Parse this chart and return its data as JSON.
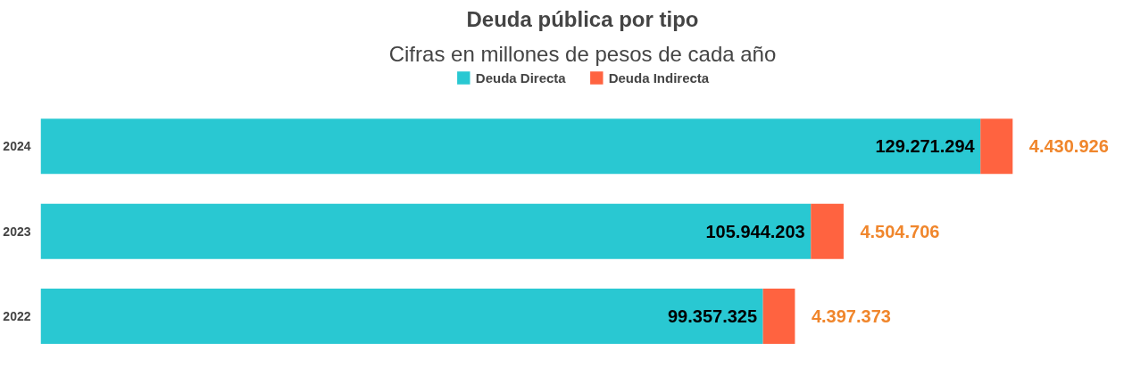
{
  "chart_data": {
    "type": "bar",
    "orientation": "horizontal",
    "stacked": true,
    "title": "Deuda pública por tipo",
    "subtitle": "Cifras en millones de pesos de cada año",
    "categories": [
      "2024",
      "2023",
      "2022"
    ],
    "series": [
      {
        "name": "Deuda Directa",
        "color": "#29c8d2",
        "values": [
          129271294,
          105944203,
          99357325
        ],
        "value_labels": [
          "129.271.294",
          "105.944.203",
          "99.357.325"
        ]
      },
      {
        "name": "Deuda Indirecta",
        "color": "#ff6340",
        "values": [
          4430926,
          4504706,
          4397373
        ],
        "value_labels": [
          "4.430.926",
          "4.504.706",
          "4.397.373"
        ]
      }
    ],
    "legend": "top",
    "tick_labels": "y",
    "grid": false
  }
}
